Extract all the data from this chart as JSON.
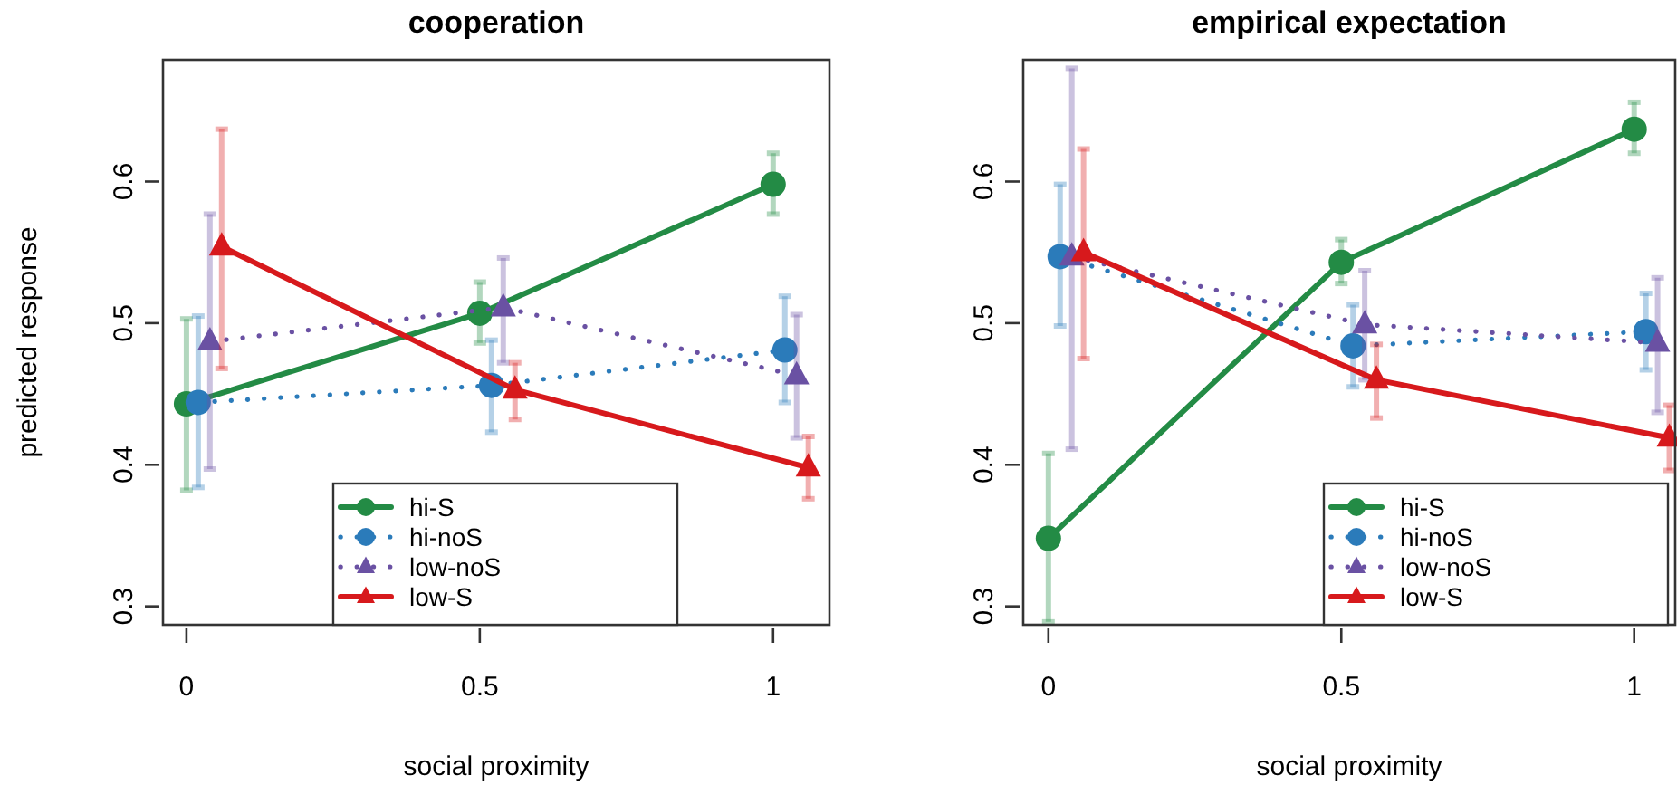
{
  "chart_data": [
    {
      "type": "line",
      "title": "cooperation",
      "xlabel": "social proximity",
      "ylabel": "predicted response",
      "xlim": [
        -0.04,
        1.096
      ],
      "ylim": [
        0.287,
        0.686
      ],
      "xticks": [
        0,
        0.5,
        1
      ],
      "yticks": [
        0.3,
        0.4,
        0.5,
        0.6
      ],
      "legend": "bottom",
      "grid": false,
      "series": [
        {
          "name": "hi-S",
          "color": "#238b45",
          "marker": "circle",
          "line_style": "solid",
          "x": [
            0,
            0.5,
            1
          ],
          "values": [
            0.443,
            0.507,
            0.598
          ],
          "errors": [
            [
              0.382,
              0.503
            ],
            [
              0.486,
              0.529
            ],
            [
              0.577,
              0.62
            ]
          ]
        },
        {
          "name": "hi-noS",
          "color": "#2b7bba",
          "marker": "circle",
          "line_style": "dotted",
          "x": [
            0.02,
            0.52,
            1.02
          ],
          "values": [
            0.444,
            0.456,
            0.481
          ],
          "errors": [
            [
              0.384,
              0.505
            ],
            [
              0.423,
              0.488
            ],
            [
              0.444,
              0.519
            ]
          ]
        },
        {
          "name": "low-noS",
          "color": "#6a51a3",
          "marker": "triangle",
          "line_style": "dotted",
          "x": [
            0.04,
            0.54,
            1.04
          ],
          "values": [
            0.487,
            0.511,
            0.463
          ],
          "errors": [
            [
              0.397,
              0.577
            ],
            [
              0.472,
              0.546
            ],
            [
              0.419,
              0.506
            ]
          ]
        },
        {
          "name": "low-S",
          "color": "#d7191c",
          "marker": "triangle",
          "line_style": "solid",
          "x": [
            0.06,
            0.56,
            1.06
          ],
          "values": [
            0.554,
            0.453,
            0.398
          ],
          "errors": [
            [
              0.468,
              0.637
            ],
            [
              0.432,
              0.472
            ],
            [
              0.376,
              0.42
            ]
          ]
        }
      ]
    },
    {
      "type": "line",
      "title": "empirical expectation",
      "xlabel": "social proximity",
      "xlim": [
        -0.043,
        1.07
      ],
      "ylim": [
        0.287,
        0.686
      ],
      "xticks": [
        0,
        0.5,
        1
      ],
      "yticks": [
        0.3,
        0.4,
        0.5,
        0.6
      ],
      "legend": "bottom right",
      "grid": false,
      "series": [
        {
          "name": "hi-S",
          "color": "#238b45",
          "marker": "circle",
          "line_style": "solid",
          "x": [
            0,
            0.5,
            1
          ],
          "values": [
            0.348,
            0.543,
            0.637
          ],
          "errors": [
            [
              0.289,
              0.408
            ],
            [
              0.528,
              0.559
            ],
            [
              0.62,
              0.656
            ]
          ]
        },
        {
          "name": "hi-noS",
          "color": "#2b7bba",
          "marker": "circle",
          "line_style": "dotted",
          "x": [
            0.02,
            0.52,
            1.02
          ],
          "values": [
            0.547,
            0.484,
            0.494
          ],
          "errors": [
            [
              0.498,
              0.598
            ],
            [
              0.455,
              0.513
            ],
            [
              0.467,
              0.521
            ]
          ]
        },
        {
          "name": "low-noS",
          "color": "#6a51a3",
          "marker": "triangle",
          "line_style": "dotted",
          "x": [
            0.04,
            0.54,
            1.04
          ],
          "values": [
            0.547,
            0.499,
            0.486
          ],
          "errors": [
            [
              0.411,
              0.68
            ],
            [
              0.46,
              0.537
            ],
            [
              0.437,
              0.532
            ]
          ]
        },
        {
          "name": "low-S",
          "color": "#d7191c",
          "marker": "triangle",
          "line_style": "solid",
          "x": [
            0.06,
            0.56,
            1.06
          ],
          "values": [
            0.55,
            0.46,
            0.419
          ],
          "errors": [
            [
              0.475,
              0.623
            ],
            [
              0.433,
              0.485
            ],
            [
              0.396,
              0.442
            ]
          ]
        }
      ]
    }
  ]
}
